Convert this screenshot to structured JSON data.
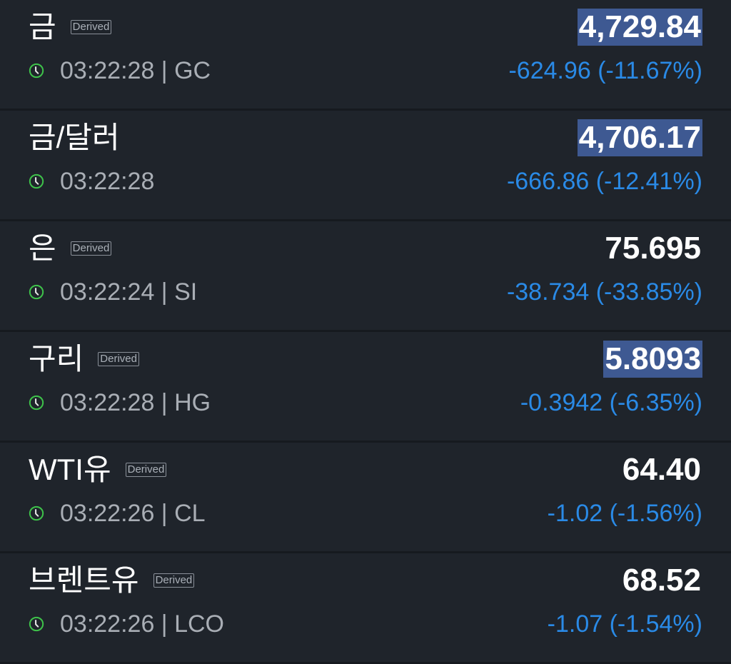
{
  "colors": {
    "background": "#1f242b",
    "negative_change": "#2a8ae6",
    "highlight": "#3e5992",
    "clock": "#3ec24a"
  },
  "items": [
    {
      "name": "금",
      "badge": "Derived",
      "time": "03:22:28",
      "symbol": "GC",
      "price": "4,729.84",
      "highlighted": true,
      "change": "-624.96 (-11.67%)",
      "icon": "clock-icon"
    },
    {
      "name": "금/달러",
      "badge": "",
      "time": "03:22:28",
      "symbol": "",
      "price": "4,706.17",
      "highlighted": true,
      "change": "-666.86 (-12.41%)",
      "icon": "clock-icon"
    },
    {
      "name": "은",
      "badge": "Derived",
      "time": "03:22:24",
      "symbol": "SI",
      "price": "75.695",
      "highlighted": false,
      "change": "-38.734 (-33.85%)",
      "icon": "clock-icon"
    },
    {
      "name": "구리",
      "badge": "Derived",
      "time": "03:22:28",
      "symbol": "HG",
      "price": "5.8093",
      "highlighted": true,
      "change": "-0.3942 (-6.35%)",
      "icon": "clock-icon"
    },
    {
      "name": "WTI유",
      "badge": "Derived",
      "time": "03:22:26",
      "symbol": "CL",
      "price": "64.40",
      "highlighted": false,
      "change": "-1.02 (-1.56%)",
      "icon": "clock-icon"
    },
    {
      "name": "브렌트유",
      "badge": "Derived",
      "time": "03:22:26",
      "symbol": "LCO",
      "price": "68.52",
      "highlighted": false,
      "change": "-1.07 (-1.54%)",
      "icon": "clock-icon"
    }
  ]
}
